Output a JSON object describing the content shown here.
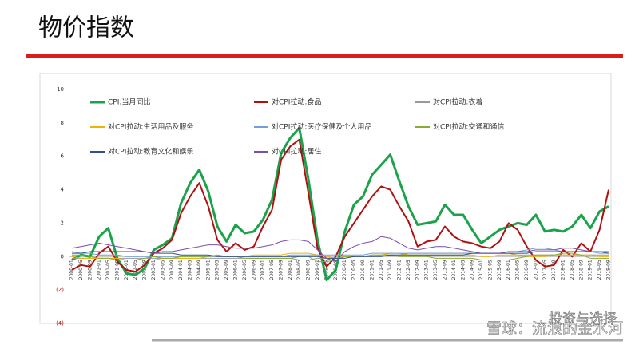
{
  "header": {
    "title": "物价指数"
  },
  "watermark": {
    "line1": "投资与选择",
    "line2": "雪球：流浪的金水河"
  },
  "chart_data": {
    "type": "line",
    "categories": [
      "2000-01",
      "2000-05",
      "2000-09",
      "2001-01",
      "2001-05",
      "2001-09",
      "2002-01",
      "2002-05",
      "2002-09",
      "2003-01",
      "2003-05",
      "2003-09",
      "2004-01",
      "2004-05",
      "2004-09",
      "2005-01",
      "2005-05",
      "2005-09",
      "2006-01",
      "2006-05",
      "2006-09",
      "2007-01",
      "2007-05",
      "2007-09",
      "2008-01",
      "2008-05",
      "2008-09",
      "2009-01",
      "2009-05",
      "2009-09",
      "2010-01",
      "2010-05",
      "2010-09",
      "2011-01",
      "2011-05",
      "2011-09",
      "2012-01",
      "2012-05",
      "2012-09",
      "2013-01",
      "2013-05",
      "2013-09",
      "2014-01",
      "2014-05",
      "2014-09",
      "2015-01",
      "2015-05",
      "2015-09",
      "2016-01",
      "2016-05",
      "2016-09",
      "2017-01",
      "2017-05",
      "2017-09",
      "2018-01",
      "2018-05",
      "2018-09",
      "2019-01",
      "2019-05",
      "2019-09"
    ],
    "series": [
      {
        "name": "CPI:当月同比",
        "color": "#1aa34a",
        "width": 3,
        "values": [
          -0.2,
          0.1,
          0.0,
          1.2,
          1.7,
          -0.1,
          -1.0,
          -1.1,
          -0.7,
          0.4,
          0.7,
          1.1,
          3.2,
          4.4,
          5.2,
          3.9,
          1.8,
          0.9,
          1.9,
          1.4,
          1.5,
          2.2,
          3.4,
          6.2,
          7.1,
          7.7,
          4.6,
          1.0,
          -1.4,
          -0.8,
          1.5,
          3.1,
          3.6,
          4.9,
          5.5,
          6.1,
          4.5,
          3.0,
          1.9,
          2.0,
          2.1,
          3.1,
          2.5,
          2.5,
          1.6,
          0.8,
          1.2,
          1.6,
          1.8,
          2.0,
          1.9,
          2.5,
          1.5,
          1.6,
          1.5,
          1.8,
          2.5,
          1.7,
          2.7,
          3.0
        ]
      },
      {
        "name": "对CPI拉动:食品",
        "color": "#b01010",
        "width": 2,
        "values": [
          -0.8,
          -0.5,
          -0.6,
          0.2,
          0.6,
          -0.3,
          -0.8,
          -0.9,
          -0.5,
          0.2,
          0.5,
          1.0,
          2.6,
          3.6,
          4.4,
          3.0,
          1.0,
          0.3,
          0.8,
          0.4,
          0.6,
          1.8,
          2.8,
          5.8,
          6.6,
          7.0,
          3.8,
          0.5,
          -0.6,
          0.0,
          1.2,
          2.0,
          2.8,
          3.6,
          4.2,
          4.0,
          3.0,
          2.1,
          0.6,
          0.9,
          1.0,
          1.8,
          1.2,
          0.9,
          0.8,
          0.6,
          0.5,
          0.9,
          2.0,
          1.6,
          0.6,
          -0.2,
          -0.6,
          -0.5,
          0.4,
          0.0,
          0.8,
          0.3,
          1.6,
          4.0
        ]
      },
      {
        "name": "对CPI拉动:衣着",
        "color": "#999999",
        "width": 1,
        "values": [
          -0.1,
          -0.1,
          -0.1,
          -0.1,
          -0.1,
          -0.1,
          -0.1,
          -0.1,
          -0.1,
          -0.1,
          -0.1,
          -0.1,
          -0.1,
          -0.1,
          -0.1,
          -0.1,
          -0.1,
          -0.1,
          -0.1,
          -0.1,
          -0.1,
          -0.1,
          -0.1,
          -0.1,
          -0.1,
          -0.2,
          -0.2,
          -0.1,
          -0.1,
          -0.1,
          0.0,
          0.0,
          0.0,
          0.0,
          0.1,
          0.1,
          0.1,
          0.2,
          0.2,
          0.2,
          0.2,
          0.2,
          0.2,
          0.2,
          0.2,
          0.2,
          0.2,
          0.2,
          0.2,
          0.1,
          0.1,
          0.1,
          0.1,
          0.1,
          0.1,
          0.1,
          0.1,
          0.1,
          0.1,
          0.1
        ]
      },
      {
        "name": "对CPI拉动:生活用品及服务",
        "color": "#f0b400",
        "width": 1,
        "values": [
          0.0,
          -0.1,
          -0.1,
          -0.1,
          -0.1,
          -0.1,
          -0.2,
          -0.2,
          -0.2,
          -0.2,
          -0.1,
          -0.1,
          -0.1,
          -0.1,
          -0.1,
          0.0,
          0.0,
          0.0,
          0.0,
          0.0,
          0.1,
          0.1,
          0.1,
          0.1,
          0.2,
          0.2,
          0.2,
          0.1,
          0.0,
          -0.1,
          0.0,
          0.0,
          0.0,
          0.1,
          0.1,
          0.2,
          0.2,
          0.1,
          0.1,
          0.1,
          0.1,
          0.1,
          0.1,
          0.1,
          0.1,
          0.0,
          0.0,
          0.1,
          0.1,
          0.1,
          0.0,
          0.0,
          0.0,
          0.1,
          0.1,
          0.1,
          0.1,
          0.1,
          0.0,
          0.0
        ]
      },
      {
        "name": "对CPI拉动:医疗保健及个人用品",
        "color": "#6fa0d8",
        "width": 1,
        "values": [
          0.3,
          0.2,
          0.2,
          0.1,
          0.1,
          0.1,
          0.0,
          0.0,
          0.0,
          0.0,
          0.0,
          0.0,
          0.0,
          0.0,
          0.0,
          0.0,
          0.0,
          0.0,
          0.0,
          0.0,
          0.0,
          0.0,
          0.0,
          0.0,
          0.1,
          0.1,
          0.1,
          0.1,
          0.1,
          0.1,
          0.1,
          0.1,
          0.1,
          0.2,
          0.2,
          0.2,
          0.2,
          0.2,
          0.2,
          0.2,
          0.2,
          0.2,
          0.2,
          0.2,
          0.2,
          0.2,
          0.2,
          0.2,
          0.3,
          0.3,
          0.4,
          0.5,
          0.5,
          0.4,
          0.3,
          0.3,
          0.3,
          0.3,
          0.2,
          0.2
        ]
      },
      {
        "name": "对CPI拉动:交通和通信",
        "color": "#8aaa30",
        "width": 1,
        "values": [
          0.1,
          0.1,
          0.0,
          -0.1,
          -0.1,
          -0.2,
          -0.2,
          -0.2,
          -0.1,
          0.0,
          -0.1,
          -0.1,
          0.0,
          0.0,
          0.0,
          0.0,
          0.1,
          0.0,
          0.0,
          -0.1,
          -0.1,
          -0.1,
          -0.1,
          -0.1,
          -0.1,
          0.0,
          0.0,
          -0.3,
          -0.3,
          -0.2,
          0.0,
          0.0,
          0.0,
          0.1,
          0.1,
          0.1,
          0.0,
          0.0,
          0.0,
          0.0,
          -0.1,
          -0.1,
          -0.1,
          -0.1,
          -0.1,
          -0.2,
          -0.2,
          -0.2,
          -0.2,
          -0.1,
          0.0,
          0.1,
          0.1,
          0.1,
          0.2,
          0.2,
          0.1,
          -0.1,
          -0.1,
          -0.1
        ]
      },
      {
        "name": "对CPI拉动:教育文化和娱乐",
        "color": "#2f4f8f",
        "width": 1,
        "values": [
          0.2,
          0.2,
          0.3,
          0.3,
          0.3,
          0.3,
          0.3,
          0.3,
          0.3,
          0.2,
          0.2,
          0.2,
          0.1,
          0.1,
          0.1,
          0.1,
          0.0,
          0.0,
          0.0,
          0.0,
          0.0,
          0.0,
          0.0,
          0.0,
          0.0,
          0.0,
          0.0,
          0.0,
          -0.1,
          -0.1,
          -0.1,
          0.0,
          0.0,
          0.0,
          0.0,
          0.1,
          0.1,
          0.1,
          0.1,
          0.1,
          0.1,
          0.1,
          0.1,
          0.1,
          0.2,
          0.2,
          0.2,
          0.2,
          0.2,
          0.2,
          0.2,
          0.3,
          0.3,
          0.3,
          0.3,
          0.3,
          0.3,
          0.3,
          0.3,
          0.2
        ]
      },
      {
        "name": "对CPI拉动:居住",
        "color": "#7b4fa8",
        "width": 1,
        "values": [
          0.5,
          0.6,
          0.7,
          0.8,
          0.7,
          0.6,
          0.5,
          0.4,
          0.3,
          0.2,
          0.3,
          0.3,
          0.4,
          0.5,
          0.6,
          0.7,
          0.7,
          0.6,
          0.5,
          0.5,
          0.5,
          0.6,
          0.7,
          0.9,
          1.0,
          1.0,
          0.9,
          0.4,
          -0.1,
          -0.3,
          0.3,
          0.6,
          0.8,
          0.9,
          1.2,
          1.1,
          0.8,
          0.5,
          0.4,
          0.5,
          0.6,
          0.6,
          0.5,
          0.4,
          0.3,
          0.2,
          0.2,
          0.2,
          0.3,
          0.3,
          0.3,
          0.4,
          0.4,
          0.4,
          0.5,
          0.5,
          0.4,
          0.3,
          0.3,
          0.3
        ]
      }
    ],
    "ylim": [
      -4,
      10
    ],
    "yticks": [
      10,
      8,
      6,
      4,
      2,
      0,
      {
        "value": -2,
        "label": "(2)"
      },
      {
        "value": -4,
        "label": "(4)"
      }
    ],
    "grid": false,
    "legend": "top"
  }
}
